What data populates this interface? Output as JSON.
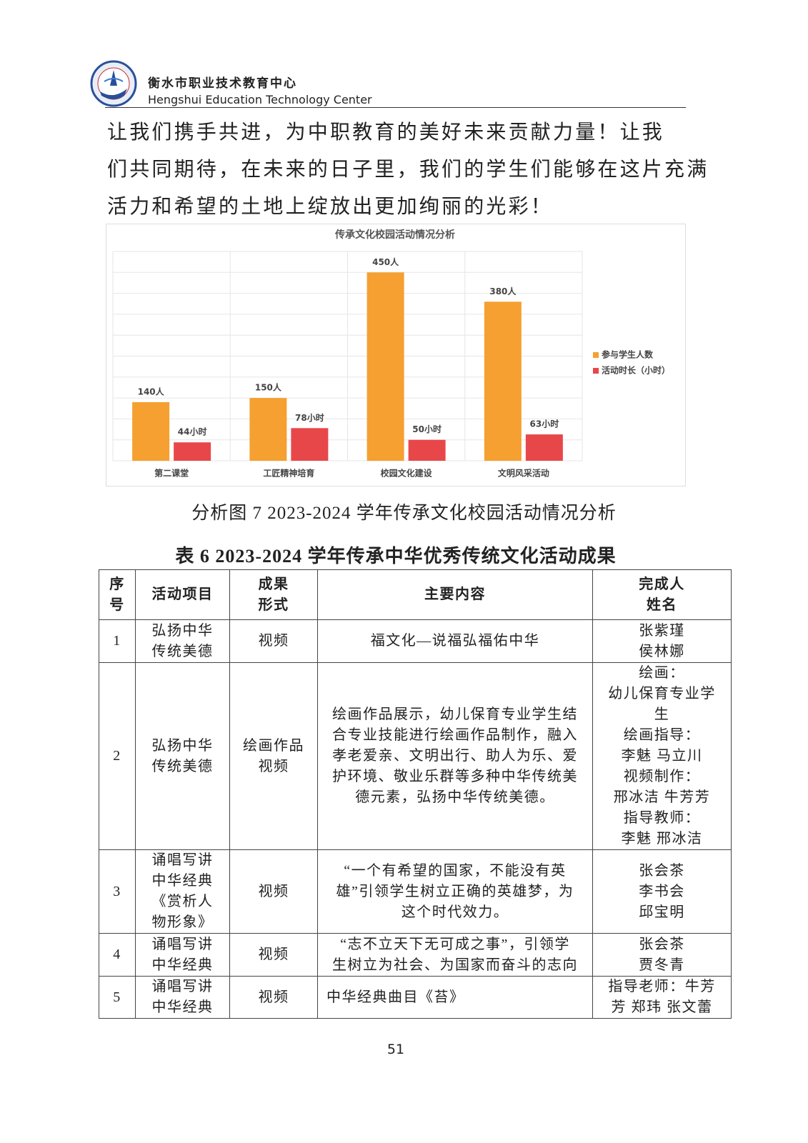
{
  "header": {
    "org_cn": "衡水市职业技术教育中心",
    "org_en": "Hengshui Education Technology Center"
  },
  "paragraph": [
    "让我们携手共进，为中职教育的美好未来贡献力量！让我",
    "们共同期待，在未来的日子里，我们的学生们能够在这片充满",
    "活力和希望的土地上绽放出更加绚丽的光彩！"
  ],
  "chart_data": {
    "type": "bar",
    "title": "传承文化校园活动情况分析",
    "categories": [
      "第二课堂",
      "工匠精神培育",
      "校园文化建设",
      "文明风采活动"
    ],
    "series": [
      {
        "name": "参与学生人数",
        "color": "#f5a030",
        "values": [
          140,
          150,
          450,
          380
        ],
        "value_labels": [
          "140人",
          "150人",
          "450人",
          "380人"
        ]
      },
      {
        "name": "活动时长（小时）",
        "color": "#e8474a",
        "values": [
          44,
          78,
          50,
          63
        ],
        "value_labels": [
          "44小时",
          "78小时",
          "50小时",
          "63小时"
        ]
      }
    ],
    "ylim": [
      0,
      500
    ],
    "yticks": [
      0,
      50,
      100,
      150,
      200,
      250,
      300,
      350,
      400,
      450,
      500
    ],
    "grid": true,
    "legend": "right"
  },
  "caption": "分析图 7 2023-2024 学年传承文化校园活动情况分析",
  "table": {
    "title": "表 6 2023-2024 学年传承中华优秀传统文化活动成果",
    "header": [
      [
        "序",
        "号"
      ],
      [
        "活动项目"
      ],
      [
        "成果",
        "形式"
      ],
      [
        "主要内容"
      ],
      [
        "完成人",
        "姓名"
      ]
    ],
    "rows": [
      [
        [
          "1"
        ],
        [
          "弘扬中华",
          "传统美德"
        ],
        [
          "视频"
        ],
        [
          "福文化—说福弘福佑中华"
        ],
        [
          "张紫瑾",
          "侯林娜"
        ]
      ],
      [
        [
          "2"
        ],
        [
          "弘扬中华",
          "传统美德"
        ],
        [
          "绘画作品",
          "视频"
        ],
        [
          "绘画作品展示，幼儿保育专业学生结",
          "合专业技能进行绘画作品制作，融入",
          "孝老爱亲、文明出行、助人为乐、爱",
          "护环境、敬业乐群等多种中华传统美",
          "德元素，弘扬中华传统美德。"
        ],
        [
          "绘画：",
          "幼儿保育专业学",
          "生",
          "绘画指导：",
          "李魅 马立川",
          "视频制作：",
          "邢冰洁 牛芳芳",
          "指导教师：",
          "李魅 邢冰洁"
        ]
      ],
      [
        [
          "3"
        ],
        [
          "诵唱写讲",
          "中华经典",
          "《赏析人",
          "物形象》"
        ],
        [
          "视频"
        ],
        [
          "“一个有希望的国家，不能没有英",
          "雄”引领学生树立正确的英雄梦，为",
          "这个时代效力。"
        ],
        [
          "张会茶",
          "李书会",
          "邱宝明"
        ]
      ],
      [
        [
          "4"
        ],
        [
          "诵唱写讲",
          "中华经典"
        ],
        [
          "视频"
        ],
        [
          "“志不立天下无可成之事”，引领学",
          "生树立为社会、为国家而奋斗的志向"
        ],
        [
          "张会茶",
          "贾冬青"
        ]
      ],
      [
        [
          "5"
        ],
        [
          "诵唱写讲",
          "中华经典"
        ],
        [
          "视频"
        ],
        [
          "中华经典曲目《苔》"
        ],
        [
          "指导老师：牛芳",
          "芳 郑玮 张文蕾"
        ]
      ]
    ]
  },
  "page_number": "51"
}
